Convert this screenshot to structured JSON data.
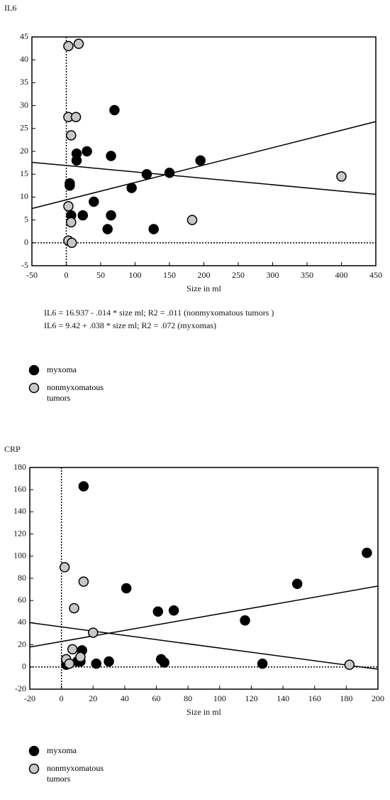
{
  "chart_data": [
    {
      "type": "scatter",
      "title": "IL6",
      "x_label": "Size in ml",
      "annotations": [
        "IL6 = 16.937 - .014 * size ml; R2 = .011 (nonmyxomatous tumors )",
        "IL6 = 9.42 + .038 * size ml; R2 = .072 (myxomas)"
      ],
      "xlim": [
        -50,
        450
      ],
      "xticks": [
        -50,
        0,
        50,
        100,
        150,
        200,
        250,
        300,
        350,
        400,
        450
      ],
      "ylim": [
        -5,
        45
      ],
      "yticks": [
        -5,
        0,
        5,
        10,
        15,
        20,
        25,
        30,
        35,
        40,
        45
      ],
      "reference_lines": {
        "x": 0,
        "y": 0
      },
      "fit_lines": [
        {
          "x": [
            -50,
            450
          ],
          "values": [
            17.6,
            10.6
          ]
        },
        {
          "x": [
            -50,
            450
          ],
          "values": [
            7.5,
            26.5
          ]
        }
      ],
      "series": [
        {
          "name": "myxoma",
          "color": "#000000",
          "x": [
            70,
            15,
            15,
            30,
            65,
            5,
            5,
            7,
            24,
            40,
            65,
            60,
            95,
            117,
            150,
            195,
            127
          ],
          "values": [
            29,
            19.5,
            18,
            20,
            19,
            13,
            12.5,
            6,
            6,
            9,
            6,
            3,
            12,
            15,
            15.3,
            18,
            3
          ]
        },
        {
          "name": "nonmyxomatous tumors",
          "color": "#c8c8c8",
          "x": [
            3,
            18,
            3,
            14,
            7,
            3,
            7,
            3,
            8,
            183,
            400
          ],
          "values": [
            43,
            43.5,
            27.5,
            27.5,
            23.5,
            8,
            4.5,
            0.5,
            0,
            5,
            14.5
          ]
        }
      ]
    },
    {
      "type": "scatter",
      "title": "CRP",
      "x_label": "Size in ml",
      "xlim": [
        -20,
        200
      ],
      "xticks": [
        -20,
        0,
        20,
        40,
        60,
        80,
        100,
        120,
        140,
        160,
        180,
        200
      ],
      "ylim": [
        -20,
        180
      ],
      "yticks": [
        -20,
        0,
        20,
        40,
        60,
        80,
        100,
        120,
        140,
        160,
        180
      ],
      "reference_lines": {
        "x": 0,
        "y": 0
      },
      "fit_lines": [
        {
          "x": [
            -20,
            200
          ],
          "values": [
            18,
            73
          ]
        },
        {
          "x": [
            -20,
            200
          ],
          "values": [
            40,
            -2
          ]
        }
      ],
      "series": [
        {
          "name": "myxoma",
          "color": "#000000",
          "x": [
            14,
            41,
            61,
            71,
            116,
            149,
            193,
            3,
            10,
            12,
            13,
            22,
            30,
            63,
            65,
            127
          ],
          "values": [
            163,
            71,
            50,
            51,
            42,
            75,
            103,
            2,
            5,
            5,
            15,
            3,
            5,
            7,
            4,
            3
          ]
        },
        {
          "name": "nonmyxomatous tumors",
          "color": "#c8c8c8",
          "x": [
            2,
            14,
            8,
            20,
            7,
            3,
            5,
            12,
            182
          ],
          "values": [
            90,
            77,
            53,
            31,
            16,
            7,
            3,
            9,
            2
          ]
        }
      ]
    }
  ]
}
